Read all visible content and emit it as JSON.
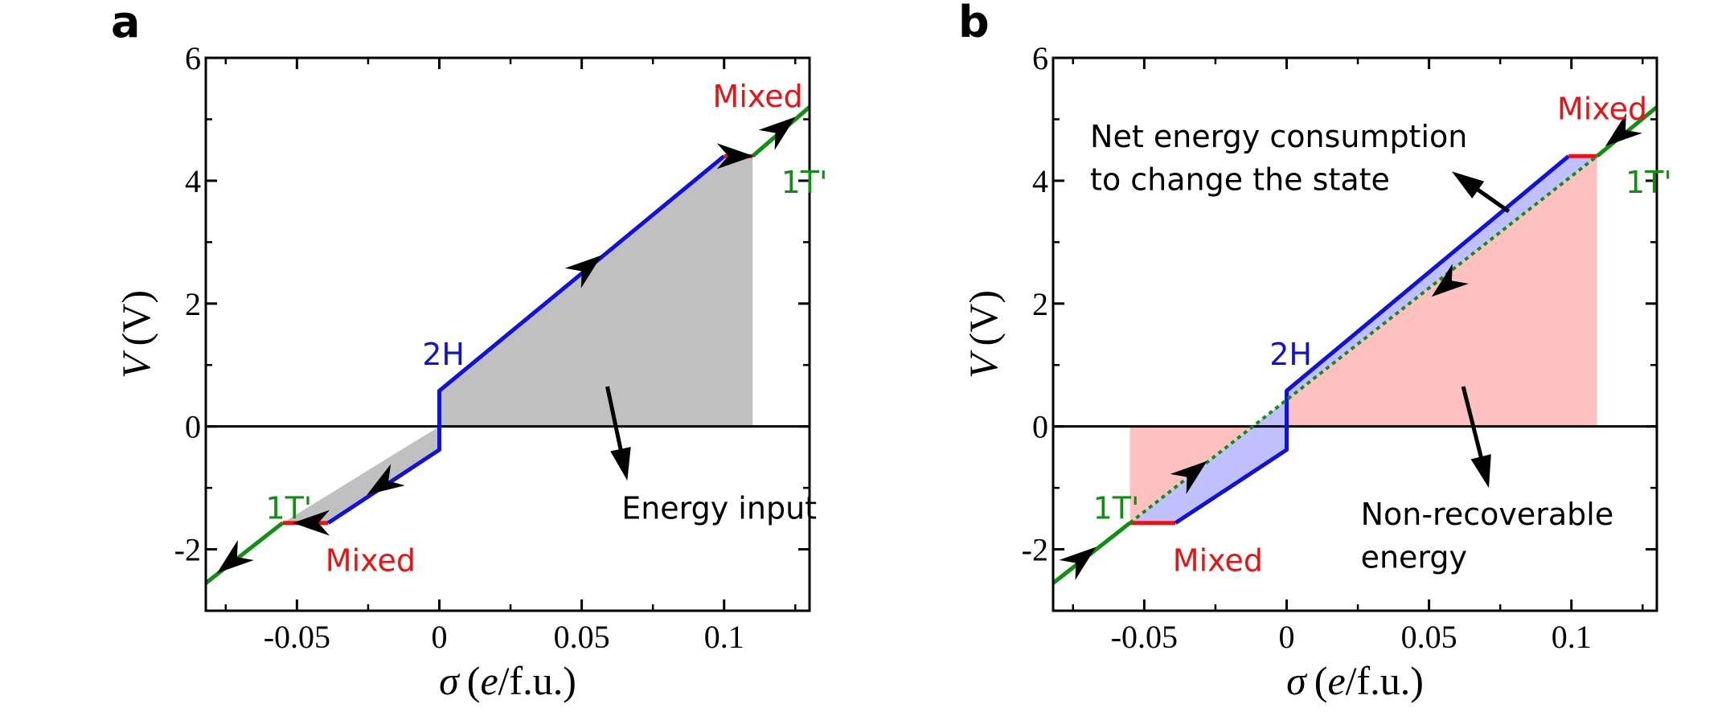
{
  "figure": {
    "panels": [
      {
        "label": "a",
        "ylabel": {
          "symbol": "V",
          "unit": "(V)"
        },
        "xlabel": {
          "symbol": "σ",
          "unit_open": "(",
          "unit_e": "e",
          "unit_rest": "/f.u.)"
        }
      },
      {
        "label": "b",
        "ylabel": {
          "symbol": "V",
          "unit": "(V)"
        },
        "xlabel": {
          "symbol": "σ",
          "unit_open": "(",
          "unit_e": "e",
          "unit_rest": "/f.u.)"
        }
      }
    ]
  },
  "chart_data": [
    {
      "type": "line",
      "panel": "a",
      "xlabel": "σ (e/f.u.)",
      "ylabel": "V (V)",
      "xlim": [
        -0.082,
        0.13
      ],
      "ylim": [
        -3,
        6
      ],
      "xticks": [
        -0.05,
        0,
        0.05,
        0.1
      ],
      "xtick_labels": [
        "-0.05",
        "0",
        "0.05",
        "0.1"
      ],
      "yticks": [
        -2,
        0,
        2,
        4,
        6
      ],
      "ytick_labels": [
        "-2",
        "0",
        "2",
        "4",
        "6"
      ],
      "zero_line": true,
      "series": [
        {
          "phase": "1T'",
          "color": "#109010",
          "x": [
            -0.082,
            -0.055
          ],
          "y": [
            -2.55,
            -1.57
          ]
        },
        {
          "phase": "Mixed",
          "color": "#ee1111",
          "x": [
            -0.055,
            -0.039
          ],
          "y": [
            -1.57,
            -1.57
          ]
        },
        {
          "phase": "2H",
          "color": "#1111dd",
          "x": [
            -0.039,
            0.0,
            0.0,
            0.1
          ],
          "y": [
            -1.57,
            -0.38,
            0.58,
            4.4
          ]
        },
        {
          "phase": "Mixed",
          "color": "#ee1111",
          "x": [
            0.1,
            0.11
          ],
          "y": [
            4.4,
            4.4
          ]
        },
        {
          "phase": "1T'",
          "color": "#109010",
          "x": [
            0.11,
            0.13
          ],
          "y": [
            4.4,
            5.2
          ]
        }
      ],
      "shaded_regions": [
        {
          "name": "Energy input",
          "color": "#c0c0c0",
          "x": [
            -0.055,
            -0.039,
            0.0,
            0.0
          ],
          "y": [
            -1.57,
            -1.57,
            -0.38,
            0
          ]
        },
        {
          "name": "Energy input",
          "color": "#c0c0c0",
          "x": [
            0.0,
            0.0,
            0.1,
            0.11,
            0.11
          ],
          "y": [
            0,
            0.58,
            4.4,
            4.4,
            0
          ]
        }
      ],
      "arrows": [
        {
          "x": -0.073,
          "y": -2.2,
          "dir": [
            -1,
            -0.8
          ]
        },
        {
          "x": -0.045,
          "y": -1.57,
          "dir": [
            -1,
            0
          ]
        },
        {
          "x": -0.02,
          "y": -0.95,
          "dir": [
            -1,
            -0.65
          ]
        },
        {
          "x": 0.052,
          "y": 2.6,
          "dir": [
            1,
            0.8
          ]
        },
        {
          "x": 0.104,
          "y": 4.4,
          "dir": [
            1,
            0
          ]
        },
        {
          "x": 0.12,
          "y": 4.85,
          "dir": [
            1,
            0.8
          ]
        }
      ],
      "labels": [
        {
          "text": "2H",
          "phase": "2H",
          "x": -0.006,
          "y": 1.0
        },
        {
          "text": "Mixed",
          "phase": "Mixed",
          "x": 0.096,
          "y": 5.2
        },
        {
          "text": "1T'",
          "phase": "1T'",
          "x": 0.12,
          "y": 3.8
        },
        {
          "text": "1T'",
          "phase": "1T'",
          "x": -0.061,
          "y": -1.5
        },
        {
          "text": "Mixed",
          "phase": "Mixed",
          "x": -0.04,
          "y": -2.35
        },
        {
          "text": "Energy input",
          "phase": "note",
          "x": 0.064,
          "y": -1.5
        }
      ],
      "pointer": {
        "from": [
          0.059,
          0.65
        ],
        "to": [
          0.066,
          -0.88
        ]
      }
    },
    {
      "type": "line",
      "panel": "b",
      "xlabel": "σ (e/f.u.)",
      "ylabel": "V (V)",
      "xlim": [
        -0.082,
        0.13
      ],
      "ylim": [
        -3,
        6
      ],
      "xticks": [
        -0.05,
        0,
        0.05,
        0.1
      ],
      "xtick_labels": [
        "-0.05",
        "0",
        "0.05",
        "0.1"
      ],
      "yticks": [
        -2,
        0,
        2,
        4,
        6
      ],
      "ytick_labels": [
        "-2",
        "0",
        "2",
        "4",
        "6"
      ],
      "zero_line": true,
      "series": [
        {
          "phase": "1T'",
          "color": "#109010",
          "x": [
            -0.082,
            -0.055
          ],
          "y": [
            -2.55,
            -1.57
          ]
        },
        {
          "phase": "Mixed",
          "color": "#ee1111",
          "x": [
            -0.055,
            -0.039
          ],
          "y": [
            -1.57,
            -1.57
          ]
        },
        {
          "phase": "2H",
          "color": "#1111dd",
          "x": [
            -0.039,
            0.0,
            0.0,
            0.099
          ],
          "y": [
            -1.57,
            -0.38,
            0.58,
            4.4
          ]
        },
        {
          "phase": "Mixed",
          "color": "#ee1111",
          "x": [
            0.099,
            0.109
          ],
          "y": [
            4.4,
            4.4
          ]
        },
        {
          "phase": "1T'",
          "color": "#109010",
          "x": [
            0.109,
            0.13
          ],
          "y": [
            4.4,
            5.2
          ]
        },
        {
          "phase": "1T' (dotted)",
          "color": "#109010",
          "dotted": true,
          "x": [
            -0.055,
            0.109
          ],
          "y": [
            -1.57,
            4.4
          ]
        }
      ],
      "shaded_regions": [
        {
          "name": "Non-recoverable energy",
          "color": "#ffc0c0",
          "x": [
            -0.055,
            -0.055,
            -0.012
          ],
          "y": [
            0,
            -1.57,
            0
          ]
        },
        {
          "name": "Non-recoverable energy",
          "color": "#ffc0c0",
          "x": [
            -0.012,
            0.109,
            0.109
          ],
          "y": [
            0,
            4.4,
            0
          ]
        },
        {
          "name": "Net energy consumption to change the state",
          "color": "#c0c0ff",
          "x": [
            -0.055,
            -0.039,
            0.0,
            0.0,
            0.099,
            0.109
          ],
          "y": [
            -1.57,
            -1.57,
            -0.38,
            0.58,
            4.4,
            4.4
          ]
        }
      ],
      "arrows": [
        {
          "x": -0.072,
          "y": -2.15,
          "dir": [
            1,
            0.8
          ]
        },
        {
          "x": -0.033,
          "y": -0.75,
          "dir": [
            1,
            0.8
          ]
        },
        {
          "x": 0.056,
          "y": 2.3,
          "dir": [
            -1,
            -0.8
          ]
        },
        {
          "x": 0.117,
          "y": 4.75,
          "dir": [
            -1,
            -0.8
          ]
        }
      ],
      "labels": [
        {
          "text": "2H",
          "phase": "2H",
          "x": -0.006,
          "y": 1.0
        },
        {
          "text": "Mixed",
          "phase": "Mixed",
          "x": 0.095,
          "y": 5.0
        },
        {
          "text": "1T'",
          "phase": "1T'",
          "x": 0.119,
          "y": 3.8
        },
        {
          "text": "1T'",
          "phase": "1T'",
          "x": -0.068,
          "y": -1.5
        },
        {
          "text": "Mixed",
          "phase": "Mixed",
          "x": -0.04,
          "y": -2.35
        },
        {
          "text": "Net energy consumption",
          "phase": "note",
          "x": -0.069,
          "y": 4.55
        },
        {
          "text": "to change the state",
          "phase": "note",
          "x": -0.069,
          "y": 3.85
        },
        {
          "text": "Non-recoverable",
          "phase": "note",
          "x": 0.026,
          "y": -1.6
        },
        {
          "text": "energy",
          "phase": "note",
          "x": 0.026,
          "y": -2.3
        }
      ],
      "pointers": [
        {
          "from": [
            0.078,
            3.5
          ],
          "to": [
            0.058,
            4.15
          ]
        },
        {
          "from": [
            0.062,
            0.65
          ],
          "to": [
            0.071,
            -1.0
          ]
        }
      ]
    }
  ]
}
